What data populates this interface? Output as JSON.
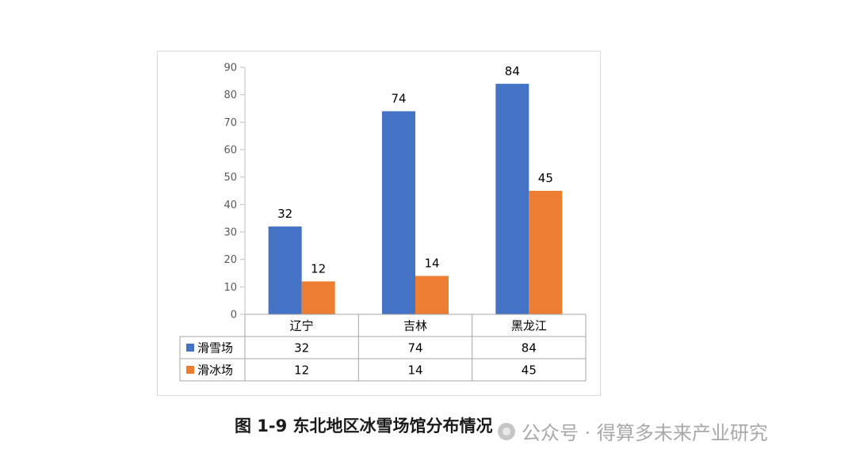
{
  "chart_data": {
    "type": "bar",
    "categories": [
      "辽宁",
      "吉林",
      "黑龙江"
    ],
    "series": [
      {
        "name": "滑雪场",
        "values": [
          32,
          74,
          84
        ],
        "color": "#4472c4"
      },
      {
        "name": "滑冰场",
        "values": [
          12,
          14,
          45
        ],
        "color": "#ed7d31"
      }
    ],
    "ylim": [
      0,
      90
    ],
    "yticks": [
      0,
      10,
      20,
      30,
      40,
      50,
      60,
      70,
      80,
      90
    ],
    "data_labels": true,
    "data_table": true,
    "grid": false
  },
  "caption": "图 1-9 东北地区冰雪场馆分布情况",
  "watermark": "公众号 · 得算多未来产业研究"
}
